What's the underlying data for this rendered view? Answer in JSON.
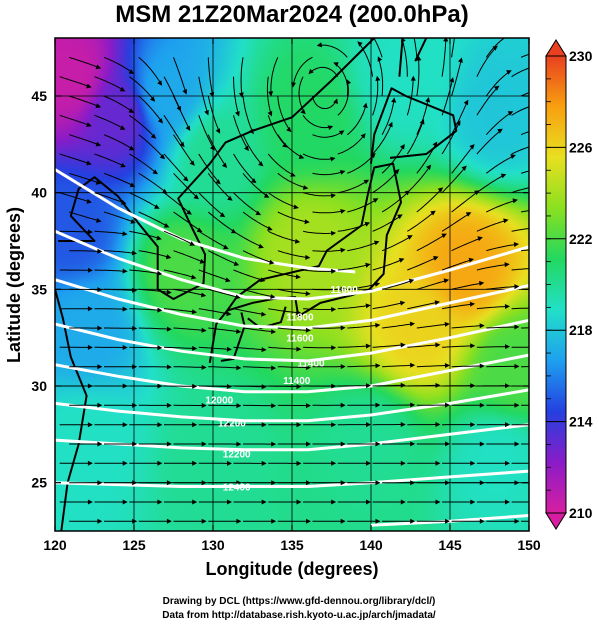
{
  "chart_data": {
    "type": "heatmap",
    "title": "MSM 21Z20Mar2024 (200.0hPa)",
    "xlabel": "Longitude (degrees)",
    "ylabel": "Latitude  (degrees)",
    "xlim": [
      120,
      150
    ],
    "ylim": [
      22.5,
      48
    ],
    "x_ticks": [
      "120",
      "125",
      "130",
      "135",
      "140",
      "145",
      "150"
    ],
    "y_ticks": [
      "25",
      "30",
      "35",
      "40",
      "45"
    ],
    "grid": true,
    "colorbar": {
      "min": 210,
      "max": 230,
      "tick_labels": [
        "210",
        "214",
        "218",
        "222",
        "226",
        "230"
      ],
      "colors": [
        "#d81ea0",
        "#8a1cc8",
        "#2440e0",
        "#1ea0f0",
        "#22e0c8",
        "#22d860",
        "#8ae020",
        "#e8e020",
        "#f8a010",
        "#e84020"
      ]
    },
    "field_samples": [
      {
        "lon": 121,
        "lat": 46,
        "value": 210.5
      },
      {
        "lon": 124,
        "lat": 44,
        "value": 213
      },
      {
        "lon": 121,
        "lat": 38,
        "value": 215
      },
      {
        "lon": 127,
        "lat": 45,
        "value": 217
      },
      {
        "lon": 130,
        "lat": 42,
        "value": 220
      },
      {
        "lon": 136,
        "lat": 44,
        "value": 221
      },
      {
        "lon": 142,
        "lat": 46,
        "value": 219
      },
      {
        "lon": 148,
        "lat": 44,
        "value": 218
      },
      {
        "lon": 122,
        "lat": 33,
        "value": 217
      },
      {
        "lon": 128,
        "lat": 36,
        "value": 222
      },
      {
        "lon": 136,
        "lat": 37,
        "value": 224
      },
      {
        "lon": 146,
        "lat": 36,
        "value": 227.5
      },
      {
        "lon": 143,
        "lat": 33,
        "value": 226
      },
      {
        "lon": 149,
        "lat": 31,
        "value": 222
      },
      {
        "lon": 122,
        "lat": 27,
        "value": 219
      },
      {
        "lon": 130,
        "lat": 26,
        "value": 220
      },
      {
        "lon": 140,
        "lat": 27,
        "value": 220
      },
      {
        "lon": 148,
        "lat": 26,
        "value": 219
      }
    ],
    "contour_labels": [
      "11600",
      "11800",
      "11600",
      "11400",
      "11400",
      "12000",
      "12200",
      "12200",
      "12400"
    ],
    "wind_vortex": {
      "lon": 137,
      "lat": 44.5
    },
    "credits": [
      "Drawing by DCL (https://www.gfd-dennou.org/library/dcl/)",
      "Data from http://database.rish.kyoto-u.ac.jp/arch/jmadata/"
    ]
  }
}
